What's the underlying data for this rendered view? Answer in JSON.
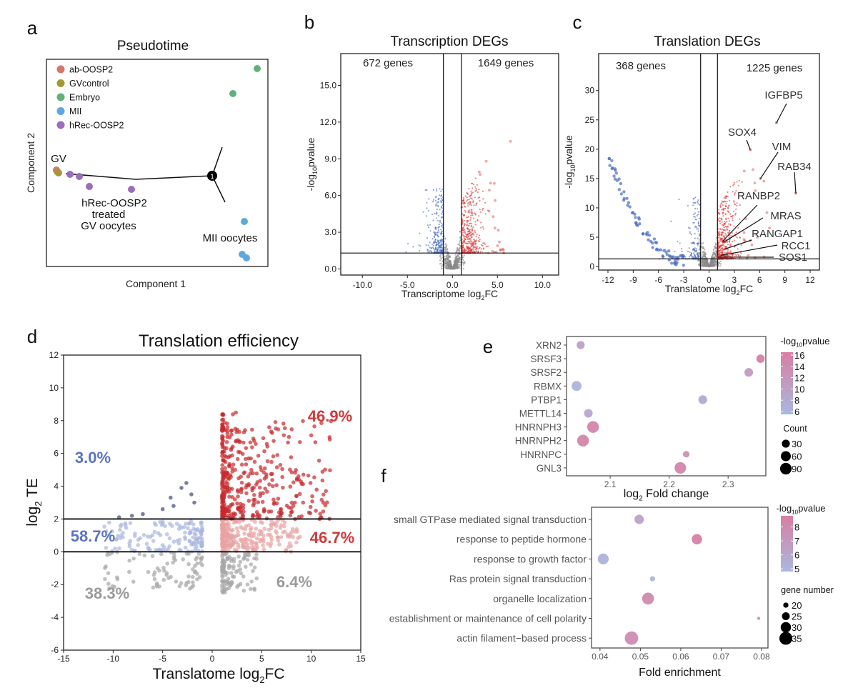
{
  "panel_letters": [
    "a",
    "b",
    "c",
    "d",
    "e",
    "f"
  ],
  "chart_data": [
    {
      "panel": "a",
      "type": "scatter",
      "title": "Pseudotime",
      "xlabel": "Component 1",
      "ylabel": "Component 2",
      "legend": [
        {
          "name": "ab-OOSP2",
          "color": "#d4766a"
        },
        {
          "name": "GVcontrol",
          "color": "#a39a35"
        },
        {
          "name": "Embryo",
          "color": "#5fb27a"
        },
        {
          "name": "MII",
          "color": "#5ea8e0"
        },
        {
          "name": "hRec-OOSP2",
          "color": "#9a6dbd"
        }
      ],
      "annotations": [
        "GV",
        "hRec-OOSP2",
        "treated",
        "GV oocytes",
        "MII oocytes"
      ],
      "branch_node": "1"
    },
    {
      "panel": "b",
      "type": "scatter",
      "title": "Transcription DEGs",
      "xlabel": {
        "pre": "Transcriptome log",
        "sub": "2",
        "post": "FC"
      },
      "ylabel": {
        "pre": "-log",
        "sub": "10",
        "post": "pvalue"
      },
      "xlim": [
        -12.4,
        11.8
      ],
      "ylim": [
        -0.5,
        17.6
      ],
      "xticks": [
        -10,
        -5,
        0,
        5,
        10
      ],
      "xtick_labels": [
        "-10.0",
        "-5.0",
        "0.0",
        "5.0",
        "10.0"
      ],
      "yticks": [
        0,
        3,
        6,
        9,
        12,
        15
      ],
      "ytick_labels": [
        "0.0",
        "3.0",
        "6.0",
        "9.0",
        "12.0",
        "15.0"
      ],
      "fc_threshold": 1,
      "p_threshold": 1.3,
      "counts": {
        "down": "672 genes",
        "up": "1649 genes"
      },
      "colors": {
        "down": "#4a6cc0",
        "up": "#d93a3a",
        "ns": "#8a8a8a"
      }
    },
    {
      "panel": "c",
      "type": "scatter",
      "title": "Translation DEGs",
      "xlabel": {
        "pre": "Translatome log",
        "sub": "2",
        "post": "FC"
      },
      "ylabel": {
        "pre": "-log",
        "sub": "10",
        "post": "pvalue"
      },
      "xlim": [
        -13.1,
        13.1
      ],
      "ylim": [
        -0.6,
        36.3
      ],
      "xticks": [
        -12,
        -9,
        -6,
        -3,
        0,
        3,
        6,
        9,
        12
      ],
      "xtick_labels": [
        "-12",
        "-9",
        "-6",
        "-3",
        "0",
        "3",
        "6",
        "9",
        "12"
      ],
      "yticks": [
        0,
        5,
        10,
        15,
        20,
        25,
        30
      ],
      "ytick_labels": [
        "0",
        "5",
        "10",
        "15",
        "20",
        "25",
        "30"
      ],
      "fc_threshold": 1,
      "p_threshold": 1.3,
      "counts": {
        "down": "368 genes",
        "up": "1225 genes"
      },
      "colors": {
        "down": "#4a6cc0",
        "up": "#d93a3a",
        "ns": "#8a8a8a"
      },
      "labeled_genes": [
        {
          "gene": "IGFBP5",
          "x": 8.0,
          "y": 24.5
        },
        {
          "gene": "SOX4",
          "x": 4.9,
          "y": 19.9
        },
        {
          "gene": "VIM",
          "x": 6.1,
          "y": 15.0
        },
        {
          "gene": "RAB34",
          "x": 10.3,
          "y": 12.5
        },
        {
          "gene": "RANBP2",
          "x": 1.6,
          "y": 4.3
        },
        {
          "gene": "MRAS",
          "x": 1.7,
          "y": 4.1
        },
        {
          "gene": "RANGAP1",
          "x": 1.9,
          "y": 3.0
        },
        {
          "gene": "RCC1",
          "x": 1.4,
          "y": 1.9
        },
        {
          "gene": "SOS1",
          "x": 1.0,
          "y": 1.6
        }
      ]
    },
    {
      "panel": "d",
      "type": "scatter",
      "title": "Translation efficiency",
      "xlabel": {
        "pre": "Translatome log",
        "sub": "2",
        "post": "FC"
      },
      "ylabel": {
        "pre": "log",
        "sub": "2",
        "post": " TE"
      },
      "xlim": [
        -15,
        15
      ],
      "ylim": [
        -6,
        12
      ],
      "xticks": [
        -15,
        -10,
        -5,
        0,
        5,
        10,
        15
      ],
      "xtick_labels": [
        "-15",
        "-10",
        "-5",
        "0",
        "5",
        "10",
        "15"
      ],
      "yticks": [
        -6,
        -4,
        -2,
        0,
        2,
        4,
        6,
        8,
        10,
        12
      ],
      "ytick_labels": [
        "-6",
        "-4",
        "-2",
        "0",
        "2",
        "4",
        "6",
        "8",
        "10",
        "12"
      ],
      "hlines": [
        0,
        2
      ],
      "quadrant_labels": [
        {
          "text": "46.9%",
          "color": "#d0393a"
        },
        {
          "text": "3.0%",
          "color": "#5b73c0"
        },
        {
          "text": "58.7%",
          "color": "#5b73c0"
        },
        {
          "text": "46.7%",
          "color": "#d0393a"
        },
        {
          "text": "38.3%",
          "color": "#9a9a9a"
        },
        {
          "text": "6.4%",
          "color": "#9a9a9a"
        }
      ]
    },
    {
      "panel": "e",
      "type": "scatter",
      "xlabel": {
        "pre": "log",
        "sub": "2",
        "post": " Fold change"
      },
      "xlim": [
        2.026,
        2.364
      ],
      "xticks": [
        2.1,
        2.2,
        2.3
      ],
      "xtick_labels": [
        "2.1",
        "2.2",
        "2.3"
      ],
      "color_legend": {
        "pre": "-log",
        "sub": "10",
        "post": "pvalue",
        "ticks": [
          6,
          8,
          10,
          12,
          14,
          16
        ],
        "range": [
          5.5,
          16.5
        ],
        "low": "#aab8e0",
        "high": "#d97ea3"
      },
      "size_legend": {
        "title": "Count",
        "values": [
          30,
          60,
          90
        ]
      },
      "categories": [
        "XRN2",
        "SRSF3",
        "SRSF2",
        "RBMX",
        "PTBP1",
        "METTL14",
        "HNRNPH3",
        "HNRNPH2",
        "HNRNPC",
        "GNL3"
      ],
      "x": [
        2.05,
        2.355,
        2.335,
        2.043,
        2.257,
        2.063,
        2.071,
        2.054,
        2.229,
        2.219
      ],
      "pvalue": [
        10,
        16,
        11,
        6,
        8.5,
        9,
        15,
        15,
        13,
        15
      ],
      "count": [
        30,
        35,
        38,
        60,
        40,
        38,
        95,
        95,
        15,
        90
      ]
    },
    {
      "panel": "f",
      "type": "scatter",
      "xlabel": "Fold enrichment",
      "xlim": [
        0.0379,
        0.0816
      ],
      "xticks": [
        0.04,
        0.05,
        0.06,
        0.07,
        0.08
      ],
      "xtick_labels": [
        "0.04",
        "0.05",
        "0.06",
        "0.07",
        "0.08"
      ],
      "color_legend": {
        "pre": "-log",
        "sub": "10",
        "post": "pvalue",
        "ticks": [
          5,
          6,
          7,
          8
        ],
        "range": [
          4.8,
          8.8
        ],
        "low": "#aab8e0",
        "high": "#d97ea3"
      },
      "size_legend": {
        "title": "gene number",
        "values": [
          20,
          25,
          30,
          35
        ]
      },
      "categories": [
        "small GTPase mediated signal transduction",
        "response to peptide hormone",
        "response to growth factor",
        "Ras protein signal transduction",
        "organelle localization",
        "establishment or maintenance of cell polarity",
        "actin filament−based process"
      ],
      "x": [
        0.0497,
        0.064,
        0.0408,
        0.053,
        0.0519,
        0.0793,
        0.0478
      ],
      "pvalue": [
        6.3,
        8.6,
        5.2,
        4.9,
        8.0,
        7.2,
        7.8
      ],
      "gene_number": [
        28,
        30,
        31,
        20,
        33,
        16,
        36
      ]
    }
  ]
}
